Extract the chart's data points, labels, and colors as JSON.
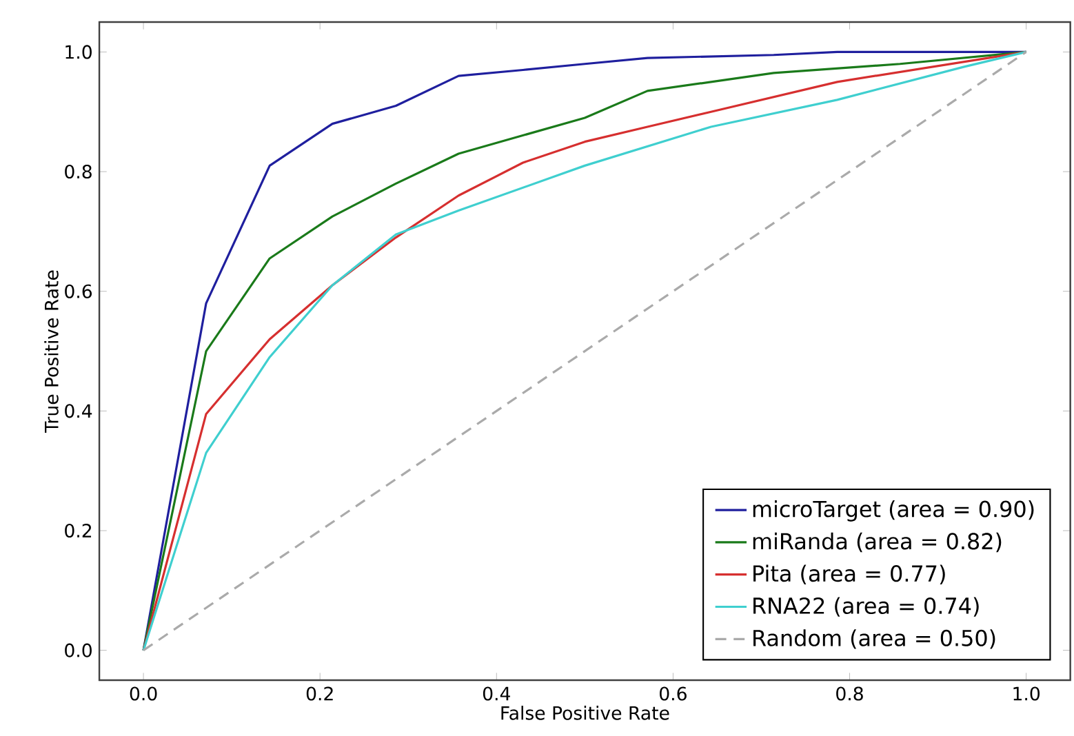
{
  "chart_data": {
    "type": "line",
    "xlabel": "False Positive Rate",
    "ylabel": "True Positive Rate",
    "xlim": [
      -0.05,
      1.05
    ],
    "ylim": [
      -0.05,
      1.05
    ],
    "xticks": [
      {
        "value": 0,
        "label": "0.0"
      },
      {
        "value": 0.2,
        "label": "0.2"
      },
      {
        "value": 0.4,
        "label": "0.4"
      },
      {
        "value": 0.6,
        "label": "0.6"
      },
      {
        "value": 0.8,
        "label": "0.8"
      },
      {
        "value": 1,
        "label": "1.0"
      }
    ],
    "yticks": [
      {
        "value": 0,
        "label": "0.0"
      },
      {
        "value": 0.2,
        "label": "0.2"
      },
      {
        "value": 0.4,
        "label": "0.4"
      },
      {
        "value": 0.6,
        "label": "0.6"
      },
      {
        "value": 0.8,
        "label": "0.8"
      },
      {
        "value": 1,
        "label": "1.0"
      }
    ],
    "legend": "bottom right",
    "grid": false,
    "marker": "none",
    "series": [
      {
        "name": "microTarget (area = 0.90)",
        "color": "#1f1f9e",
        "x": [
          0,
          0.071,
          0.143,
          0.214,
          0.286,
          0.357,
          0.43,
          0.5,
          0.571,
          0.714,
          0.786,
          1
        ],
        "values": [
          0,
          0.58,
          0.81,
          0.88,
          0.91,
          0.96,
          0.97,
          0.98,
          0.99,
          0.995,
          1,
          1
        ]
      },
      {
        "name": "miRanda (area = 0.82)",
        "color": "#1a7a1a",
        "x": [
          0,
          0.071,
          0.143,
          0.214,
          0.286,
          0.357,
          0.5,
          0.571,
          0.643,
          0.714,
          0.857,
          1
        ],
        "values": [
          0,
          0.5,
          0.655,
          0.725,
          0.78,
          0.83,
          0.89,
          0.935,
          0.95,
          0.965,
          0.98,
          1
        ]
      },
      {
        "name": "Pita (area = 0.77)",
        "color": "#d62f2f",
        "x": [
          0,
          0.071,
          0.143,
          0.214,
          0.286,
          0.357,
          0.43,
          0.5,
          0.571,
          0.643,
          0.786,
          1
        ],
        "values": [
          0,
          0.395,
          0.52,
          0.61,
          0.69,
          0.76,
          0.815,
          0.85,
          0.875,
          0.9,
          0.95,
          1
        ]
      },
      {
        "name": "RNA22 (area = 0.74)",
        "color": "#3fcfcf",
        "x": [
          0,
          0.071,
          0.143,
          0.214,
          0.286,
          0.357,
          0.5,
          0.643,
          0.786,
          0.929,
          1
        ],
        "values": [
          0,
          0.33,
          0.49,
          0.61,
          0.695,
          0.735,
          0.81,
          0.875,
          0.92,
          0.975,
          1
        ]
      },
      {
        "name": "Random (area = 0.50)",
        "color": "#aaaaaa",
        "line_style": "dashed",
        "x": [
          0,
          1
        ],
        "values": [
          0,
          1
        ]
      }
    ]
  }
}
